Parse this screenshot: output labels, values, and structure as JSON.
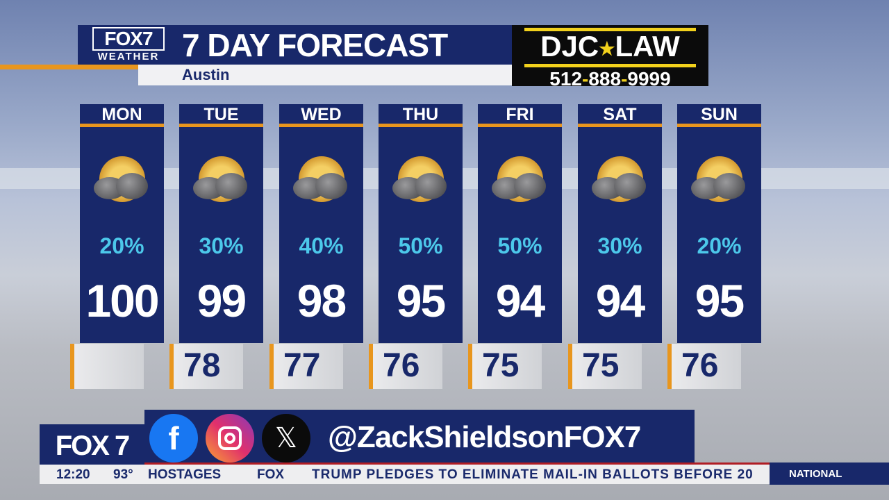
{
  "header": {
    "logo_top": "FOX7",
    "logo_bottom": "WEATHER",
    "title": "7 DAY FORECAST",
    "location": "Austin"
  },
  "ad": {
    "brand_left": "DJC",
    "brand_right": "LAW",
    "phone_parts": [
      "512",
      "-",
      "888",
      "-",
      "9999"
    ],
    "accent": "#f2d11c"
  },
  "days": [
    {
      "day": "MON",
      "precip": "20%",
      "high": "100",
      "low": ""
    },
    {
      "day": "TUE",
      "precip": "30%",
      "high": "99",
      "low": "78"
    },
    {
      "day": "WED",
      "precip": "40%",
      "high": "98",
      "low": "77"
    },
    {
      "day": "THU",
      "precip": "50%",
      "high": "95",
      "low": "76"
    },
    {
      "day": "FRI",
      "precip": "50%",
      "high": "94",
      "low": "75"
    },
    {
      "day": "SAT",
      "precip": "30%",
      "high": "94",
      "low": "75"
    },
    {
      "day": "SUN",
      "precip": "20%",
      "high": "95",
      "low": "76"
    }
  ],
  "weather_icon": "partly-sunny-thunderstorm-icon",
  "bottom": {
    "station": "FOX 7",
    "handle": "@ZackShieldsonFOX7",
    "social_icons": [
      "facebook-icon",
      "instagram-icon",
      "x-icon"
    ],
    "time": "12:20",
    "temp": "93°",
    "ticker_left": "HOSTAGES",
    "ticker_logo": "FOX",
    "ticker_headline": "TRUMP PLEDGES TO ELIMINATE MAIL-IN BALLOTS BEFORE 20",
    "section": "NATIONAL"
  },
  "colors": {
    "navy": "#18286a",
    "orange": "#e8961e",
    "precip": "#4cc8ea"
  }
}
